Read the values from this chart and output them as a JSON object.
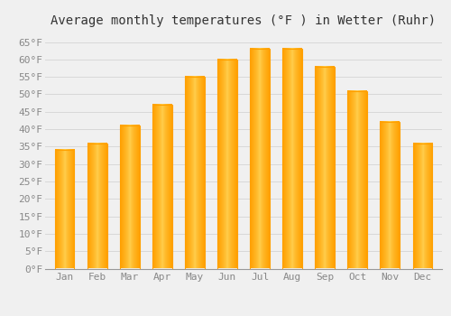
{
  "title": "Average monthly temperatures (°F ) in Wetter (Ruhr)",
  "months": [
    "Jan",
    "Feb",
    "Mar",
    "Apr",
    "May",
    "Jun",
    "Jul",
    "Aug",
    "Sep",
    "Oct",
    "Nov",
    "Dec"
  ],
  "values": [
    34,
    36,
    41,
    47,
    55,
    60,
    63,
    63,
    58,
    51,
    42,
    36
  ],
  "bar_color_center": "#FFD050",
  "bar_color_edge": "#FFA000",
  "ylim": [
    0,
    68
  ],
  "yticks": [
    0,
    5,
    10,
    15,
    20,
    25,
    30,
    35,
    40,
    45,
    50,
    55,
    60,
    65
  ],
  "ytick_labels": [
    "0°F",
    "5°F",
    "10°F",
    "15°F",
    "20°F",
    "25°F",
    "30°F",
    "35°F",
    "40°F",
    "45°F",
    "50°F",
    "55°F",
    "60°F",
    "65°F"
  ],
  "grid_color": "#d8d8d8",
  "background_color": "#f0f0f0",
  "title_fontsize": 10,
  "tick_fontsize": 8,
  "font_family": "monospace",
  "bar_width": 0.6
}
